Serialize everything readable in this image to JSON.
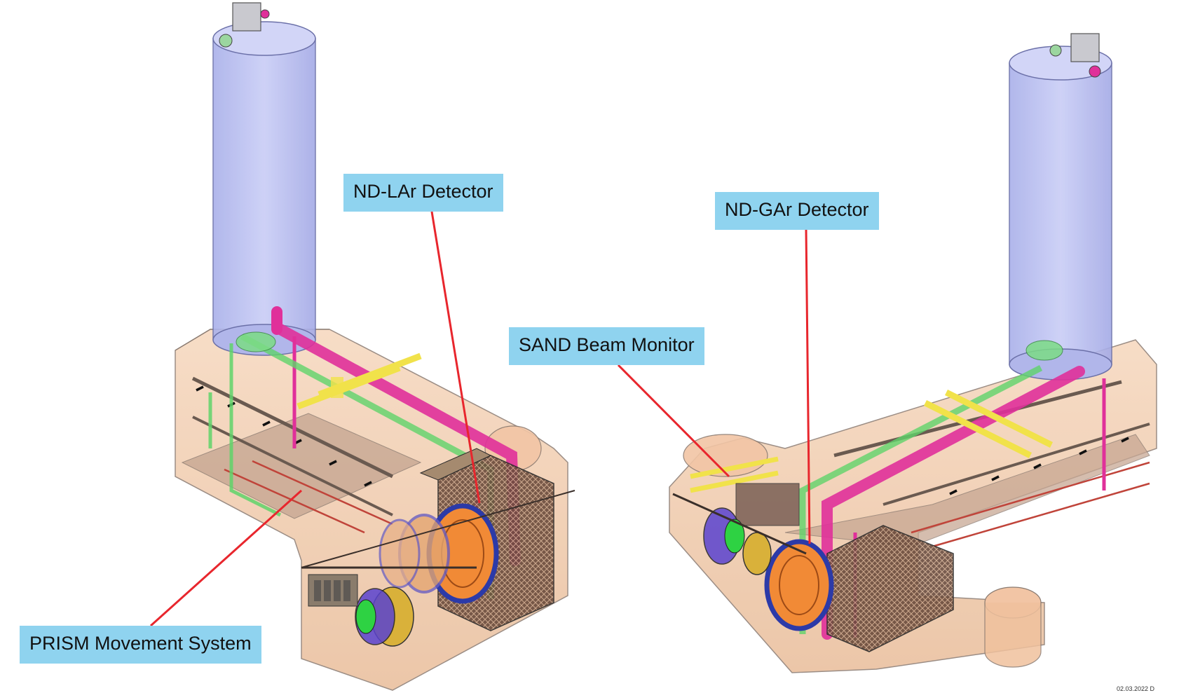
{
  "callouts": {
    "nd_lar": "ND-LAr Detector",
    "nd_gar": "ND-GAr Detector",
    "sand": "SAND Beam Monitor",
    "prism": "PRISM Movement System"
  },
  "colors": {
    "callout_fill": "#8fd3ef",
    "leader_line": "#e8262d",
    "cavern": "#f2c9a8",
    "shaft": "#b8bef0",
    "pipe_magenta": "#e0309a",
    "pipe_green": "#5fd36a",
    "rail_yellow": "#f1e24a"
  },
  "footer": {
    "date_fragment": "02.03.2022 D"
  }
}
